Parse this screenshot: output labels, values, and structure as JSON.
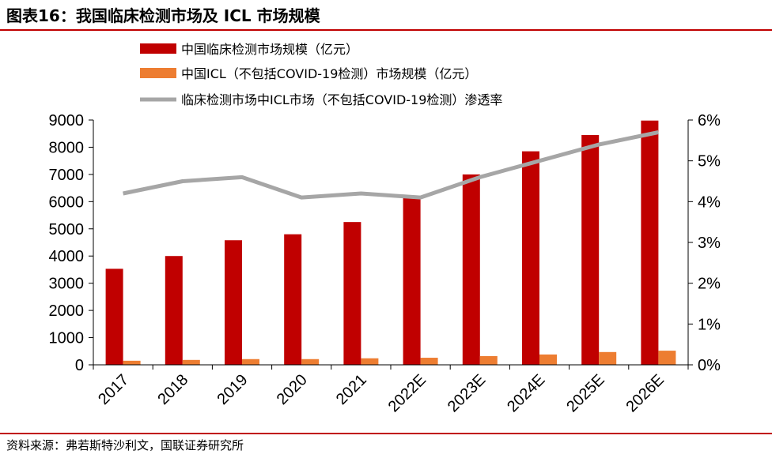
{
  "header": {
    "title": "图表16：我国临床检测市场及 ICL 市场规模"
  },
  "footer": {
    "source": "资料来源：弗若斯特沙利文，国联证券研究所"
  },
  "colors": {
    "accent_rule": "#c00000",
    "series_clinical": "#c00000",
    "series_icl": "#ed7d31",
    "series_penetration": "#a6a6a6"
  },
  "chart_data": {
    "type": "bar",
    "categories": [
      "2017",
      "2018",
      "2019",
      "2020",
      "2021",
      "2022E",
      "2023E",
      "2024E",
      "2025E",
      "2026E"
    ],
    "series": [
      {
        "name": "中国临床检测市场规模（亿元）",
        "type": "bar",
        "axis": "left",
        "values": [
          3530,
          4000,
          4580,
          4800,
          5250,
          6160,
          7000,
          7850,
          8450,
          8980
        ]
      },
      {
        "name": "中国ICL（不包括COVID-19检测）市场规模（亿元）",
        "type": "bar",
        "axis": "left",
        "values": [
          150,
          180,
          210,
          210,
          240,
          260,
          320,
          380,
          470,
          520
        ]
      },
      {
        "name": "临床检测市场中ICL市场（不包括COVID-19检测）渗透率",
        "type": "line",
        "axis": "right",
        "values": [
          4.2,
          4.5,
          4.6,
          4.1,
          4.2,
          4.1,
          4.6,
          5.0,
          5.4,
          5.7
        ]
      }
    ],
    "y_left": {
      "ylim": [
        0,
        9000
      ],
      "ticks": [
        "0",
        "1000",
        "2000",
        "3000",
        "4000",
        "5000",
        "6000",
        "7000",
        "8000",
        "9000"
      ]
    },
    "y_right": {
      "ylim": [
        0,
        6
      ],
      "ticks": [
        "0%",
        "1%",
        "2%",
        "3%",
        "4%",
        "5%",
        "6%"
      ]
    },
    "grid": false,
    "legend_position": "top"
  }
}
